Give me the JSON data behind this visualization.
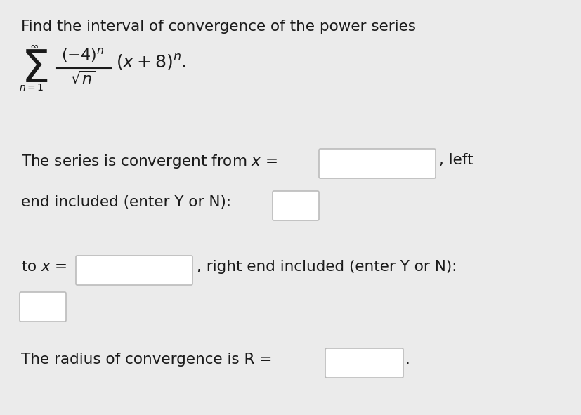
{
  "bg_color": "#ebebeb",
  "text_color": "#1a1a1a",
  "box_face": "#ffffff",
  "box_edge": "#bbbbbb",
  "title": "Find the interval of convergence of the power series",
  "line2": "The series is convergent from $x$ =",
  "line2_suffix": ", left",
  "line3": "end included (enter Y or N):",
  "line4_prefix": "to $x$ =",
  "line4_suffix": ", right end included (enter Y or N):",
  "line5": "The radius of convergence is R =",
  "line5_dot": ".",
  "font_size_title": 15.5,
  "font_size_body": 15.5,
  "fig_width": 8.27,
  "fig_height": 5.91,
  "dpi": 100
}
